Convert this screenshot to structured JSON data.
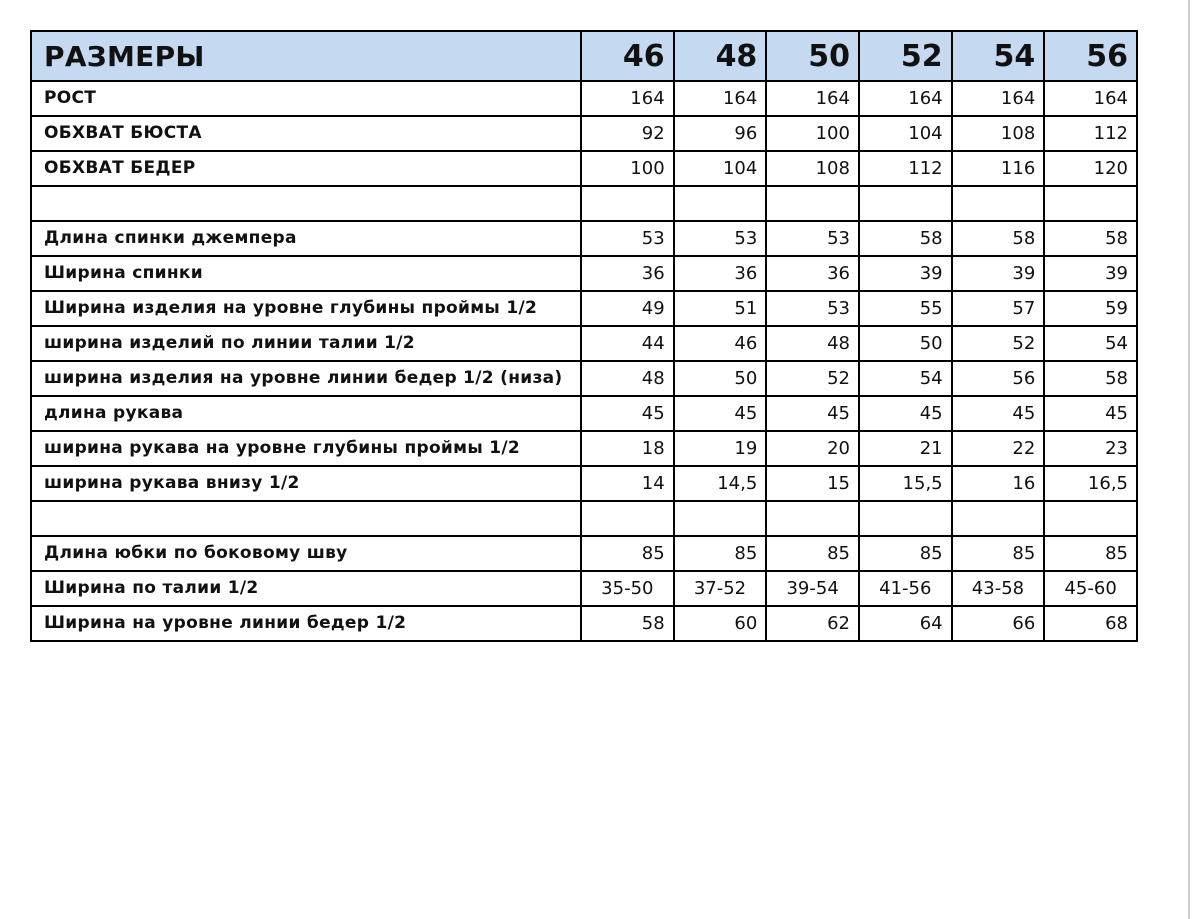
{
  "table": {
    "header": [
      "РАЗМЕРЫ",
      46,
      48,
      50,
      52,
      54,
      56
    ],
    "sections": [
      [
        [
          "РОСТ",
          164,
          164,
          164,
          164,
          164,
          164
        ],
        [
          "ОБХВАТ БЮСТА",
          92,
          96,
          100,
          104,
          108,
          112
        ],
        [
          "ОБХВАТ БЕДЕР",
          100,
          104,
          108,
          112,
          116,
          120
        ]
      ],
      [
        [
          "Длина спинки джемпера",
          53,
          53,
          53,
          58,
          58,
          58
        ],
        [
          "Ширина спинки",
          36,
          36,
          36,
          39,
          39,
          39
        ],
        [
          "Ширина изделия на уровне глубины проймы 1/2",
          49,
          51,
          53,
          55,
          57,
          59
        ],
        [
          "ширина изделий по линии талии 1/2",
          44,
          46,
          48,
          50,
          52,
          54
        ],
        [
          "ширина изделия на уровне линии бедер 1/2 (низа)",
          48,
          50,
          52,
          54,
          56,
          58
        ],
        [
          "длина рукава",
          45,
          45,
          45,
          45,
          45,
          45
        ],
        [
          "ширина рукава на уровне глубины проймы 1/2",
          18,
          19,
          20,
          21,
          22,
          23
        ],
        [
          "ширина рукава внизу 1/2",
          14,
          "14,5",
          15,
          "15,5",
          16,
          "16,5"
        ]
      ],
      [
        [
          "Длина юбки по боковому шву",
          85,
          85,
          85,
          85,
          85,
          85
        ],
        [
          "Ширина по талии 1/2",
          "35-50",
          "37-52",
          "39-54",
          "41-56",
          "43-58",
          "45-60"
        ],
        [
          "Ширина на уровне линии бедер 1/2",
          58,
          60,
          62,
          64,
          66,
          68
        ]
      ]
    ]
  }
}
